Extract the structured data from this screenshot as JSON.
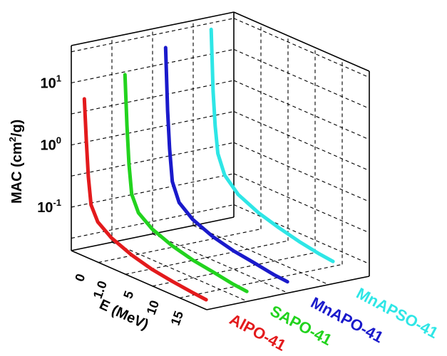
{
  "chart_data": {
    "type": "line",
    "title": "",
    "xlabel": "E (MeV)",
    "zlabel": "MAC (cm",
    "zlabel_sup": "2",
    "zlabel_tail": "/g)",
    "ylabel": "",
    "x_ticks": [
      "0",
      "1.0",
      "5",
      "10",
      "15"
    ],
    "z_ticks": [
      {
        "base": "10",
        "exp": "1",
        "value": 10
      },
      {
        "base": "10",
        "exp": "0",
        "value": 1
      },
      {
        "base": "10",
        "exp": "-1",
        "value": 0.1
      }
    ],
    "zscale": "log",
    "grid": true,
    "series": [
      {
        "name": "AlPO-41",
        "color": "#e31a1c",
        "points": [
          {
            "E": 0.01,
            "mac": 5.0
          },
          {
            "E": 0.3,
            "mac": 1.1
          },
          {
            "E": 0.6,
            "mac": 0.3
          },
          {
            "E": 1.0,
            "mac": 0.11
          },
          {
            "E": 2.0,
            "mac": 0.065
          },
          {
            "E": 4.0,
            "mac": 0.045
          },
          {
            "E": 7.0,
            "mac": 0.033
          },
          {
            "E": 10.0,
            "mac": 0.027
          },
          {
            "E": 13.0,
            "mac": 0.024
          },
          {
            "E": 16.0,
            "mac": 0.022
          },
          {
            "E": 18.0,
            "mac": 0.021
          }
        ]
      },
      {
        "name": "SAPO-41",
        "color": "#22d31e",
        "points": [
          {
            "E": 0.01,
            "mac": 9.0
          },
          {
            "E": 0.3,
            "mac": 1.4
          },
          {
            "E": 0.6,
            "mac": 0.35
          },
          {
            "E": 1.0,
            "mac": 0.12
          },
          {
            "E": 2.0,
            "mac": 0.067
          },
          {
            "E": 4.0,
            "mac": 0.046
          },
          {
            "E": 7.0,
            "mac": 0.034
          },
          {
            "E": 10.0,
            "mac": 0.028
          },
          {
            "E": 13.0,
            "mac": 0.025
          },
          {
            "E": 16.0,
            "mac": 0.022
          },
          {
            "E": 18.0,
            "mac": 0.021
          }
        ]
      },
      {
        "name": "MnAPO-41",
        "color": "#1a1acb",
        "points": [
          {
            "E": 0.01,
            "mac": 18.0
          },
          {
            "E": 0.3,
            "mac": 1.8
          },
          {
            "E": 0.6,
            "mac": 0.45
          },
          {
            "E": 1.0,
            "mac": 0.14
          },
          {
            "E": 2.0,
            "mac": 0.072
          },
          {
            "E": 4.0,
            "mac": 0.048
          },
          {
            "E": 7.0,
            "mac": 0.035
          },
          {
            "E": 10.0,
            "mac": 0.029
          },
          {
            "E": 13.0,
            "mac": 0.026
          },
          {
            "E": 16.0,
            "mac": 0.023
          },
          {
            "E": 18.0,
            "mac": 0.022
          }
        ]
      },
      {
        "name": "MnAPSO-41",
        "color": "#2ee6e6",
        "points": [
          {
            "E": 0.01,
            "mac": 25.0
          },
          {
            "E": 0.3,
            "mac": 2.6
          },
          {
            "E": 0.6,
            "mac": 0.75
          },
          {
            "E": 1.0,
            "mac": 0.28
          },
          {
            "E": 2.0,
            "mac": 0.14
          },
          {
            "E": 4.0,
            "mac": 0.085
          },
          {
            "E": 7.0,
            "mac": 0.06
          },
          {
            "E": 10.0,
            "mac": 0.048
          },
          {
            "E": 13.0,
            "mac": 0.04
          },
          {
            "E": 16.0,
            "mac": 0.035
          },
          {
            "E": 18.0,
            "mac": 0.033
          }
        ]
      }
    ]
  }
}
